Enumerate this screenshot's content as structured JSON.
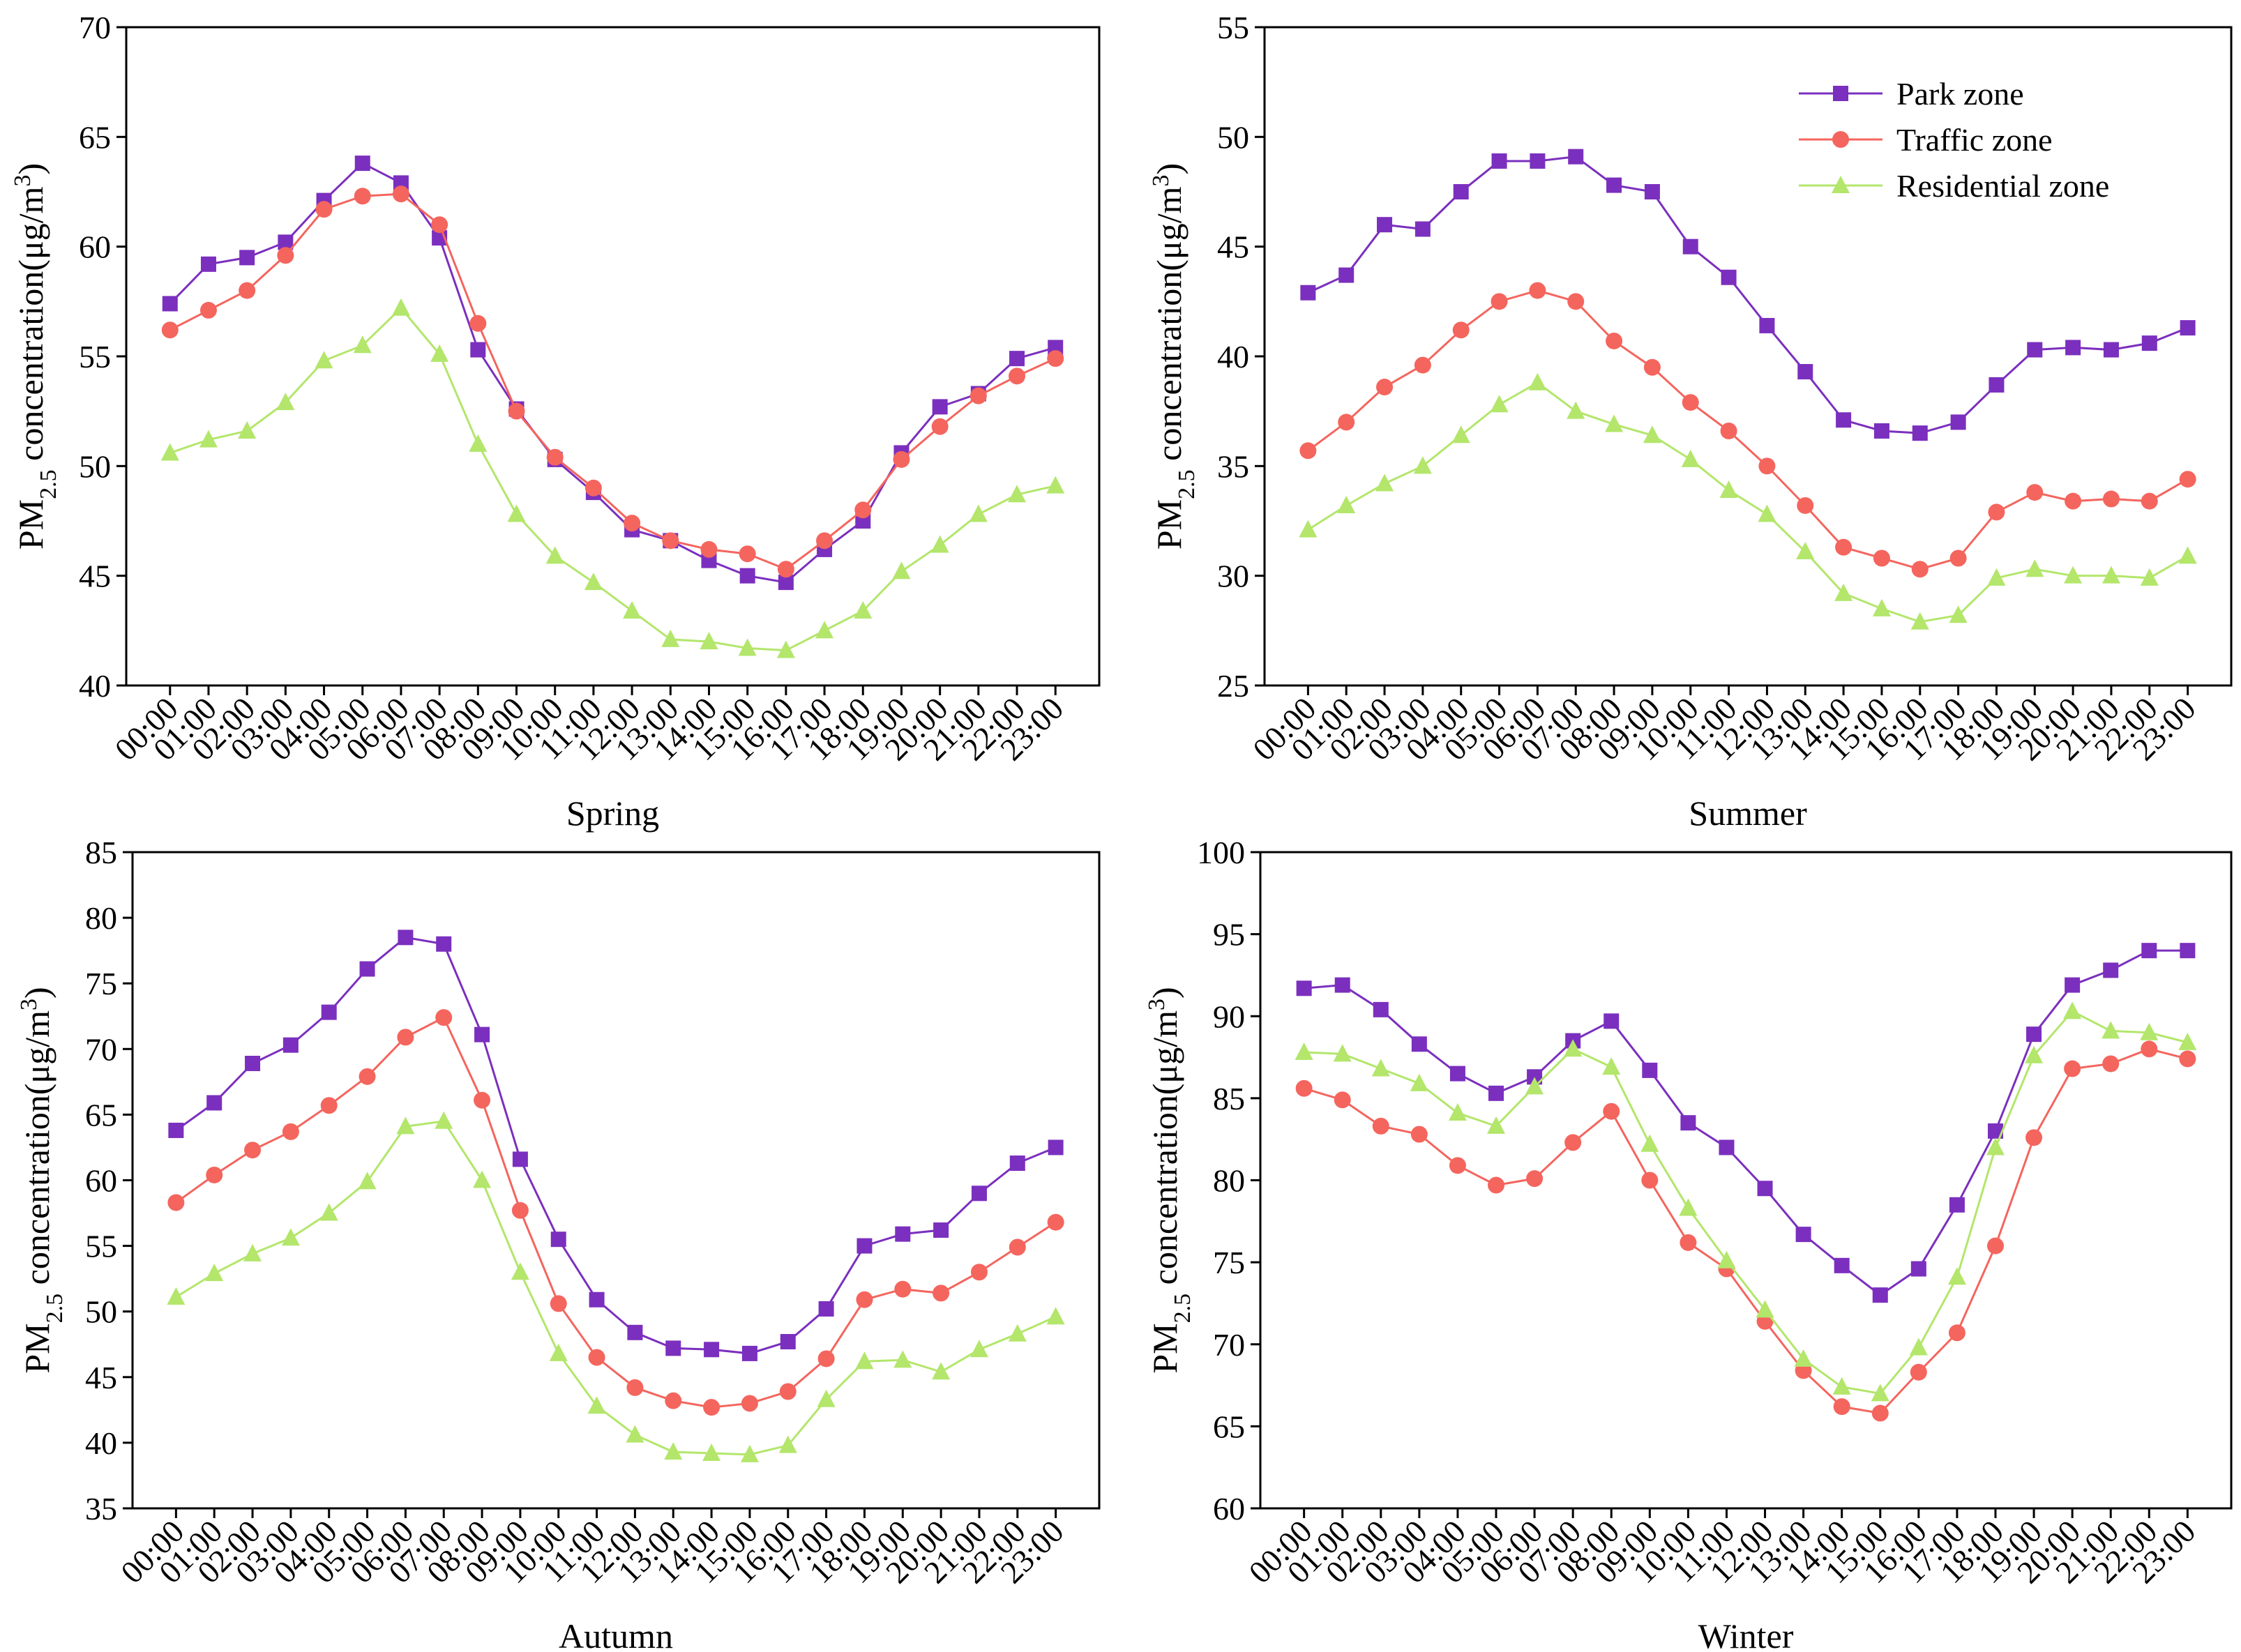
{
  "chart_data": [
    {
      "type": "line",
      "xlabel": "Spring",
      "ylabel": [
        "PM",
        "2.5",
        " concentration(μg/m",
        "3",
        ")"
      ],
      "categories": [
        "00:00",
        "01:00",
        "02:00",
        "03:00",
        "04:00",
        "05:00",
        "06:00",
        "07:00",
        "08:00",
        "09:00",
        "10:00",
        "11:00",
        "12:00",
        "13:00",
        "14:00",
        "15:00",
        "16:00",
        "17:00",
        "18:00",
        "19:00",
        "20:00",
        "21:00",
        "22:00",
        "23:00"
      ],
      "ylim": [
        40,
        70
      ],
      "yticks": [
        40,
        45,
        50,
        55,
        60,
        65,
        70
      ],
      "legend": null,
      "series": [
        {
          "name": "Park zone",
          "color": "#7b2fbe",
          "marker": "square",
          "values": [
            57.4,
            59.2,
            59.5,
            60.2,
            62.1,
            63.8,
            62.9,
            60.4,
            55.3,
            52.6,
            50.3,
            48.8,
            47.1,
            46.6,
            45.7,
            45.0,
            44.7,
            46.2,
            47.5,
            50.6,
            52.7,
            53.3,
            54.9,
            55.4
          ]
        },
        {
          "name": "Traffic zone",
          "color": "#f4655e",
          "marker": "circle",
          "values": [
            56.2,
            57.1,
            58.0,
            59.6,
            61.7,
            62.3,
            62.4,
            61.0,
            56.5,
            52.5,
            50.4,
            49.0,
            47.4,
            46.6,
            46.2,
            46.0,
            45.3,
            46.6,
            48.0,
            50.3,
            51.8,
            53.2,
            54.1,
            54.9
          ]
        },
        {
          "name": "Residential zone",
          "color": "#b3e66b",
          "marker": "triangle",
          "values": [
            50.6,
            51.2,
            51.6,
            52.9,
            54.8,
            55.5,
            57.2,
            55.1,
            51.0,
            47.8,
            45.9,
            44.7,
            43.4,
            42.1,
            42.0,
            41.7,
            41.6,
            42.5,
            43.4,
            45.2,
            46.4,
            47.8,
            48.7,
            49.1
          ]
        }
      ]
    },
    {
      "type": "line",
      "xlabel": "Summer",
      "ylabel": [
        "PM",
        "2.5",
        " concentration(μg/m",
        "3",
        ")"
      ],
      "categories": [
        "00:00",
        "01:00",
        "02:00",
        "03:00",
        "04:00",
        "05:00",
        "06:00",
        "07:00",
        "08:00",
        "09:00",
        "10:00",
        "11:00",
        "12:00",
        "13:00",
        "14:00",
        "15:00",
        "16:00",
        "17:00",
        "18:00",
        "19:00",
        "20:00",
        "21:00",
        "22:00",
        "23:00"
      ],
      "ylim": [
        25,
        55
      ],
      "yticks": [
        25,
        30,
        35,
        40,
        45,
        50,
        55
      ],
      "legend": "upper right",
      "series": [
        {
          "name": "Park zone",
          "color": "#7b2fbe",
          "marker": "square",
          "values": [
            42.9,
            43.7,
            46.0,
            45.8,
            47.5,
            48.9,
            48.9,
            49.1,
            47.8,
            47.5,
            45.0,
            43.6,
            41.4,
            39.3,
            37.1,
            36.6,
            36.5,
            37.0,
            38.7,
            40.3,
            40.4,
            40.3,
            40.6,
            41.3
          ]
        },
        {
          "name": "Traffic zone",
          "color": "#f4655e",
          "marker": "circle",
          "values": [
            35.7,
            37.0,
            38.6,
            39.6,
            41.2,
            42.5,
            43.0,
            42.5,
            40.7,
            39.5,
            37.9,
            36.6,
            35.0,
            33.2,
            31.3,
            30.8,
            30.3,
            30.8,
            32.9,
            33.8,
            33.4,
            33.5,
            33.4,
            34.4
          ]
        },
        {
          "name": "Residential zone",
          "color": "#b3e66b",
          "marker": "triangle",
          "values": [
            32.1,
            33.2,
            34.2,
            35.0,
            36.4,
            37.8,
            38.8,
            37.5,
            36.9,
            36.4,
            35.3,
            33.9,
            32.8,
            31.1,
            29.2,
            28.5,
            27.9,
            28.2,
            29.9,
            30.3,
            30.0,
            30.0,
            29.9,
            30.9
          ]
        }
      ]
    },
    {
      "type": "line",
      "xlabel": "Autumn",
      "ylabel": [
        "PM",
        "2.5",
        " concentration(μg/m",
        "3",
        ")"
      ],
      "categories": [
        "00:00",
        "01:00",
        "02:00",
        "03:00",
        "04:00",
        "05:00",
        "06:00",
        "07:00",
        "08:00",
        "09:00",
        "10:00",
        "11:00",
        "12:00",
        "13:00",
        "14:00",
        "15:00",
        "16:00",
        "17:00",
        "18:00",
        "19:00",
        "20:00",
        "21:00",
        "22:00",
        "23:00"
      ],
      "ylim": [
        35,
        85
      ],
      "yticks": [
        35,
        40,
        45,
        50,
        55,
        60,
        65,
        70,
        75,
        80,
        85
      ],
      "legend": null,
      "series": [
        {
          "name": "Park zone",
          "color": "#7b2fbe",
          "marker": "square",
          "values": [
            63.8,
            65.9,
            68.9,
            70.3,
            72.8,
            76.1,
            78.5,
            78.0,
            71.1,
            61.6,
            55.5,
            50.9,
            48.4,
            47.2,
            47.1,
            46.8,
            47.7,
            50.2,
            55.0,
            55.9,
            56.2,
            59.0,
            61.3,
            62.5
          ]
        },
        {
          "name": "Traffic zone",
          "color": "#f4655e",
          "marker": "circle",
          "values": [
            58.3,
            60.4,
            62.3,
            63.7,
            65.7,
            67.9,
            70.9,
            72.4,
            66.1,
            57.7,
            50.6,
            46.5,
            44.2,
            43.2,
            42.7,
            43.0,
            43.9,
            46.4,
            50.9,
            51.7,
            51.4,
            53.0,
            54.9,
            56.8
          ]
        },
        {
          "name": "Residential zone",
          "color": "#b3e66b",
          "marker": "triangle",
          "values": [
            51.1,
            52.9,
            54.4,
            55.6,
            57.5,
            59.9,
            64.1,
            64.5,
            60.0,
            53.0,
            46.8,
            42.8,
            40.6,
            39.3,
            39.2,
            39.1,
            39.8,
            43.3,
            46.2,
            46.3,
            45.4,
            47.1,
            48.3,
            49.6
          ]
        }
      ]
    },
    {
      "type": "line",
      "xlabel": "Winter",
      "ylabel": [
        "PM",
        "2.5",
        " concentration(μg/m",
        "3",
        ")"
      ],
      "categories": [
        "00:00",
        "01:00",
        "02:00",
        "03:00",
        "04:00",
        "05:00",
        "06:00",
        "07:00",
        "08:00",
        "09:00",
        "10:00",
        "11:00",
        "12:00",
        "13:00",
        "14:00",
        "15:00",
        "16:00",
        "17:00",
        "18:00",
        "19:00",
        "20:00",
        "21:00",
        "22:00",
        "23:00"
      ],
      "ylim": [
        60,
        100
      ],
      "yticks": [
        60,
        65,
        70,
        75,
        80,
        85,
        90,
        95,
        100
      ],
      "legend": null,
      "series": [
        {
          "name": "Park zone",
          "color": "#7b2fbe",
          "marker": "square",
          "values": [
            91.7,
            91.9,
            90.4,
            88.3,
            86.5,
            85.3,
            86.3,
            88.5,
            89.7,
            86.7,
            83.5,
            82.0,
            79.5,
            76.7,
            74.8,
            73.0,
            74.6,
            78.5,
            83.0,
            88.9,
            91.9,
            92.8,
            94.0,
            94.0
          ]
        },
        {
          "name": "Traffic zone",
          "color": "#f4655e",
          "marker": "circle",
          "values": [
            85.6,
            84.9,
            83.3,
            82.8,
            80.9,
            79.7,
            80.1,
            82.3,
            84.2,
            80.0,
            76.2,
            74.6,
            71.4,
            68.4,
            66.2,
            65.8,
            68.3,
            70.7,
            76.0,
            82.6,
            86.8,
            87.1,
            88.0,
            87.4
          ]
        },
        {
          "name": "Residential zone",
          "color": "#b3e66b",
          "marker": "triangle",
          "values": [
            87.8,
            87.7,
            86.8,
            85.9,
            84.1,
            83.3,
            85.7,
            88.0,
            86.9,
            82.2,
            78.3,
            75.1,
            72.1,
            69.1,
            67.4,
            67.0,
            69.8,
            74.1,
            82.0,
            87.6,
            90.3,
            89.1,
            89.0,
            88.4
          ]
        }
      ]
    }
  ]
}
